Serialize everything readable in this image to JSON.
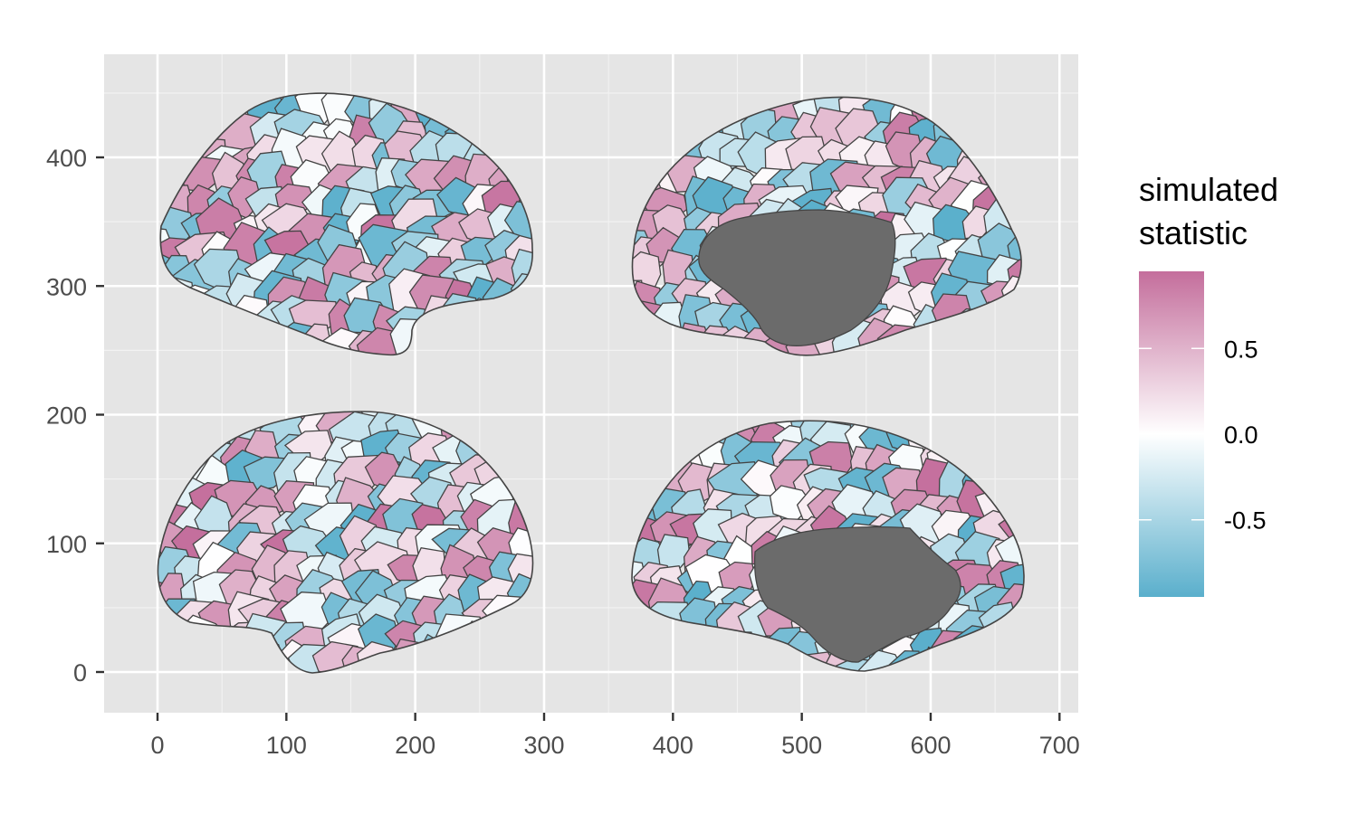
{
  "chart_data": {
    "type": "heatmap",
    "description_kind": "brain-atlas",
    "x": {
      "ticks": [
        0,
        100,
        200,
        300,
        400,
        500,
        600,
        700
      ],
      "tick_labels": [
        "0",
        "100",
        "200",
        "300",
        "400",
        "500",
        "600",
        "700"
      ],
      "lim": [
        -40,
        715
      ]
    },
    "y": {
      "ticks": [
        0,
        100,
        200,
        300,
        400
      ],
      "tick_labels": [
        "0",
        "100",
        "200",
        "300",
        "400"
      ],
      "lim": [
        -30,
        480
      ]
    },
    "grid": true,
    "panel_background": "#e5e5e5",
    "legend": {
      "title_line1": "simulated",
      "title_line2": "statistic",
      "placement": "right",
      "ticks": [
        0.5,
        0.0,
        -0.5
      ],
      "tick_labels": [
        "0.5",
        "0.0",
        "-0.5"
      ],
      "range": [
        -0.95,
        0.95
      ],
      "colors": {
        "low": "#5aafcc",
        "mid": "#ffffff",
        "high": "#c46e9c"
      }
    },
    "medial_wall_color": "#6b6b6b",
    "views": [
      {
        "name": "left lateral",
        "center": [
          150,
          350
        ]
      },
      {
        "name": "left medial",
        "center": [
          540,
          350
        ]
      },
      {
        "name": "right lateral",
        "center": [
          150,
          100
        ]
      },
      {
        "name": "right medial",
        "center": [
          540,
          100
        ]
      }
    ]
  }
}
